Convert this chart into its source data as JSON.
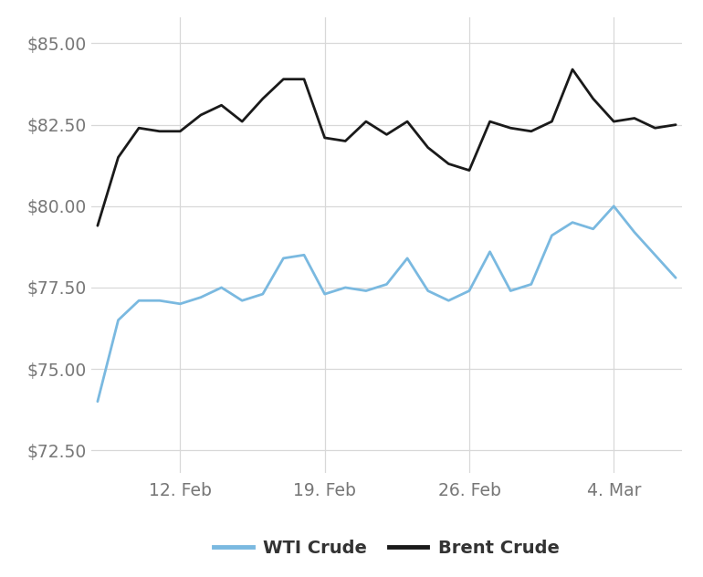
{
  "wti": [
    74.0,
    76.5,
    77.1,
    77.1,
    77.0,
    77.2,
    77.5,
    77.1,
    77.3,
    78.4,
    78.5,
    77.3,
    77.5,
    77.4,
    77.6,
    78.4,
    77.4,
    77.1,
    77.4,
    78.6,
    77.4,
    77.6,
    79.1,
    79.5,
    79.3,
    80.0,
    79.2,
    78.5,
    77.8
  ],
  "brent": [
    79.4,
    81.5,
    82.4,
    82.3,
    82.3,
    82.8,
    83.1,
    82.6,
    83.3,
    83.9,
    83.9,
    82.1,
    82.0,
    82.6,
    82.2,
    82.6,
    81.8,
    81.3,
    81.1,
    82.6,
    82.4,
    82.3,
    82.6,
    84.2,
    83.3,
    82.6,
    82.7,
    82.4,
    82.5
  ],
  "y_ticks": [
    72.5,
    75.0,
    77.5,
    80.0,
    82.5,
    85.0
  ],
  "y_lim": [
    71.8,
    85.8
  ],
  "x_lim": [
    -0.3,
    28.3
  ],
  "x_tick_positions": [
    4,
    11,
    18,
    25
  ],
  "x_tick_labels": [
    "12. Feb",
    "19. Feb",
    "26. Feb",
    "4. Mar"
  ],
  "wti_color": "#7ab9e0",
  "brent_color": "#1a1a1a",
  "grid_color": "#d8d8d8",
  "bg_color": "#ffffff",
  "line_width": 2.0,
  "legend_wti": "WTI Crude",
  "legend_brent": "Brent Crude",
  "tick_color": "#777777",
  "tick_fontsize": 13.5
}
